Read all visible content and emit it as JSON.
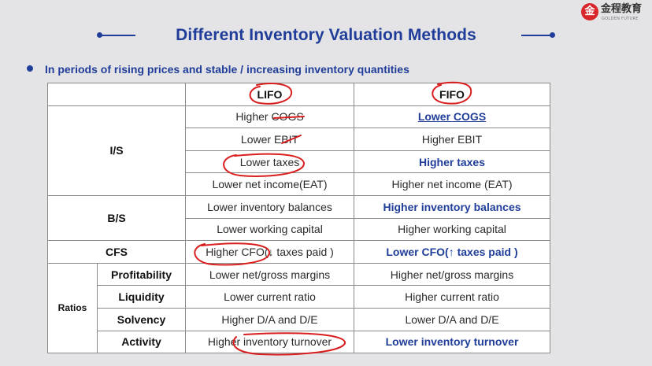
{
  "logo": {
    "mark": "金",
    "name": "金程教育",
    "sub": "GOLDEN FUTURE"
  },
  "title": "Different Inventory Valuation Methods",
  "bullet": "In periods of rising prices and stable / increasing inventory quantities",
  "table": {
    "headers": {
      "lifo": "LIFO",
      "fifo": "FIFO"
    },
    "groups": {
      "is": "I/S",
      "bs": "B/S",
      "cfs": "CFS",
      "ratios": "Ratios"
    },
    "rows": [
      {
        "lifo": "Higher COGS",
        "fifo": "Lower COGS"
      },
      {
        "lifo": "Lower EBIT",
        "fifo": "Higher EBIT"
      },
      {
        "lifo": "Lower taxes",
        "fifo": "Higher taxes"
      },
      {
        "lifo": "Lower net income(EAT)",
        "fifo": "Higher net income (EAT)"
      },
      {
        "lifo": "Lower inventory balances",
        "fifo": "Higher inventory balances"
      },
      {
        "lifo": "Lower working capital",
        "fifo": "Higher working capital"
      },
      {
        "lifo": "Higher CFO(↓ taxes paid )",
        "fifo": "Lower CFO(↑ taxes paid )"
      },
      {
        "sub": "Profitability",
        "lifo": "Lower net/gross margins",
        "fifo": "Higher net/gross margins"
      },
      {
        "sub": "Liquidity",
        "lifo": "Lower current ratio",
        "fifo": "Higher current ratio"
      },
      {
        "sub": "Solvency",
        "lifo": "Higher D/A and D/E",
        "fifo": "Lower D/A and D/E"
      },
      {
        "sub": "Activity",
        "lifo": "Higher inventory turnover",
        "fifo": "Lower inventory turnover"
      }
    ]
  },
  "colors": {
    "accent": "#1f3d99",
    "ink": "#d81e1e",
    "logo": "#d8262b"
  }
}
